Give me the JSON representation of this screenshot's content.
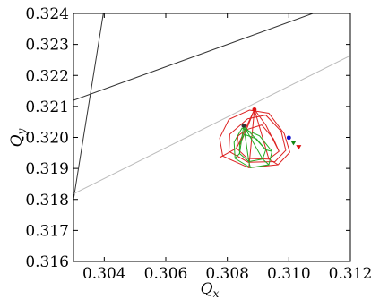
{
  "chart_data": {
    "type": "line",
    "xlabel": "Q_x",
    "ylabel": "Q_y",
    "xlim": [
      0.303,
      0.312
    ],
    "ylim": [
      0.316,
      0.324
    ],
    "xticks": [
      0.304,
      0.306,
      0.308,
      0.31,
      0.312
    ],
    "xtick_labels": [
      "0.304",
      "0.306",
      "0.308",
      "0.310",
      "0.312"
    ],
    "yticks": [
      0.316,
      0.317,
      0.318,
      0.319,
      0.32,
      0.321,
      0.322,
      0.323,
      0.324
    ],
    "ytick_labels": [
      "0.316",
      "0.317",
      "0.318",
      "0.319",
      "0.320",
      "0.321",
      "0.322",
      "0.323",
      "0.324"
    ],
    "grid": false,
    "resonance_lines": [
      {
        "color": "#333333",
        "points": [
          [
            0.303,
            0.318
          ],
          [
            0.30397,
            0.324
          ]
        ]
      },
      {
        "color": "#333333",
        "points": [
          [
            0.303,
            0.3212
          ],
          [
            0.31078,
            0.324
          ]
        ]
      },
      {
        "color": "#bbbbbb",
        "points": [
          [
            0.303,
            0.31818
          ],
          [
            0.312,
            0.32264
          ]
        ]
      }
    ],
    "footprints": [
      {
        "color": "#dd2222",
        "center": [
          0.3085,
          0.3198
        ],
        "rings": [
          [
            [
              0.30862,
              0.32025
            ],
            [
              0.30912,
              0.3204
            ],
            [
              0.3095,
              0.31995
            ],
            [
              0.30968,
              0.31955
            ],
            [
              0.30935,
              0.3193
            ],
            [
              0.30865,
              0.31932
            ],
            [
              0.3083,
              0.31965
            ],
            [
              0.30835,
              0.32005
            ]
          ],
          [
            [
              0.30866,
              0.3206
            ],
            [
              0.30925,
              0.32072
            ],
            [
              0.30975,
              0.3202
            ],
            [
              0.3099,
              0.31958
            ],
            [
              0.30955,
              0.31922
            ],
            [
              0.30868,
              0.3192
            ],
            [
              0.30805,
              0.31955
            ],
            [
              0.30808,
              0.3201
            ]
          ],
          [
            [
              0.30872,
              0.32088
            ],
            [
              0.30935,
              0.32078
            ],
            [
              0.30985,
              0.32012
            ],
            [
              0.31003,
              0.31952
            ],
            [
              0.30965,
              0.31912
            ],
            [
              0.3087,
              0.31902
            ],
            [
              0.30785,
              0.3194
            ],
            [
              0.30775,
              0.31998
            ],
            [
              0.30805,
              0.32058
            ]
          ]
        ],
        "spokes": [
          [
            [
              0.30888,
              0.3209
            ],
            [
              0.30862,
              0.32025
            ],
            [
              0.3084,
              0.31975
            ]
          ],
          [
            [
              0.30888,
              0.3209
            ],
            [
              0.30925,
              0.3204
            ],
            [
              0.30968,
              0.31955
            ]
          ],
          [
            [
              0.30888,
              0.3209
            ],
            [
              0.3083,
              0.31965
            ],
            [
              0.30775,
              0.31935
            ]
          ],
          [
            [
              0.30888,
              0.3209
            ],
            [
              0.30935,
              0.3193
            ],
            [
              0.30965,
              0.31912
            ]
          ],
          [
            [
              0.30888,
              0.3209
            ],
            [
              0.3087,
              0.31902
            ]
          ]
        ]
      },
      {
        "color": "#22aa22",
        "center": [
          0.3086,
          0.3197
        ],
        "rings": [
          [
            [
              0.30855,
              0.3201
            ],
            [
              0.30895,
              0.31995
            ],
            [
              0.30925,
              0.3196
            ],
            [
              0.30915,
              0.3193
            ],
            [
              0.3087,
              0.31922
            ],
            [
              0.3084,
              0.31948
            ],
            [
              0.3084,
              0.3198
            ]
          ],
          [
            [
              0.30848,
              0.3203
            ],
            [
              0.30905,
              0.32005
            ],
            [
              0.30945,
              0.31955
            ],
            [
              0.30935,
              0.31912
            ],
            [
              0.30875,
              0.31902
            ],
            [
              0.30825,
              0.31932
            ],
            [
              0.30822,
              0.31985
            ]
          ]
        ],
        "spokes": [
          [
            [
              0.30853,
              0.32038
            ],
            [
              0.3087,
              0.31922
            ],
            [
              0.30875,
              0.31902
            ]
          ],
          [
            [
              0.30853,
              0.32038
            ],
            [
              0.30925,
              0.3196
            ],
            [
              0.30945,
              0.31955
            ]
          ],
          [
            [
              0.30853,
              0.32038
            ],
            [
              0.3084,
              0.31948
            ],
            [
              0.30825,
              0.31932
            ]
          ],
          [
            [
              0.30853,
              0.32038
            ],
            [
              0.30915,
              0.3193
            ],
            [
              0.30935,
              0.31912
            ]
          ]
        ]
      }
    ],
    "markers": [
      {
        "shape": "circle",
        "color": "#dd1111",
        "x": 0.30888,
        "y": 0.3209
      },
      {
        "shape": "circle",
        "color": "#333333",
        "x": 0.30853,
        "y": 0.32038
      },
      {
        "shape": "circle",
        "color": "#1111cc",
        "x": 0.31,
        "y": 0.31999
      },
      {
        "shape": "triangle-down",
        "color": "#118811",
        "x": 0.31015,
        "y": 0.31982
      },
      {
        "shape": "triangle-down",
        "color": "#dd1111",
        "x": 0.31032,
        "y": 0.31968
      }
    ]
  }
}
